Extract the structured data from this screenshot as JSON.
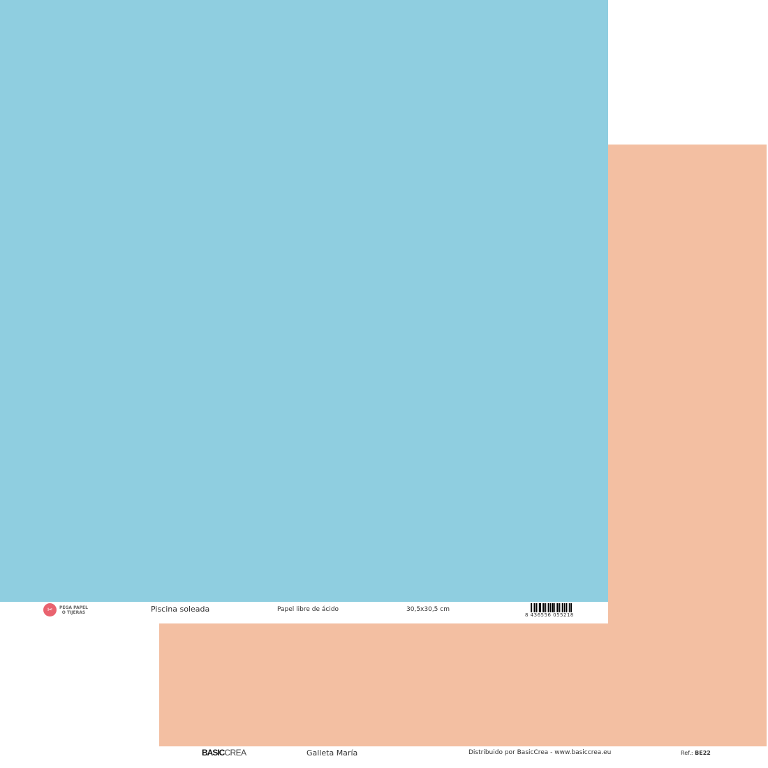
{
  "colors": {
    "blue": "#8fcee0",
    "peach": "#f3bfa2"
  },
  "front": {
    "logo": "PEGA PAPEL O TIJERAS",
    "logo_line1": "PEGA PAPEL",
    "logo_line2": "O TIJERAS",
    "name": "Piscina soleada",
    "acid_free": "Papel libre de ácido",
    "size": "30,5x30,5 cm",
    "barcode": "8 436556 055218"
  },
  "back": {
    "brand_logo": "BASICCREA",
    "brand_bold": "BASIC",
    "brand_light": "CREA",
    "name": "Galleta María",
    "distributor": "Distribuido por BasicCrea - www.basiccrea.eu",
    "ref_label": "Ref.:",
    "ref": "BE22"
  }
}
